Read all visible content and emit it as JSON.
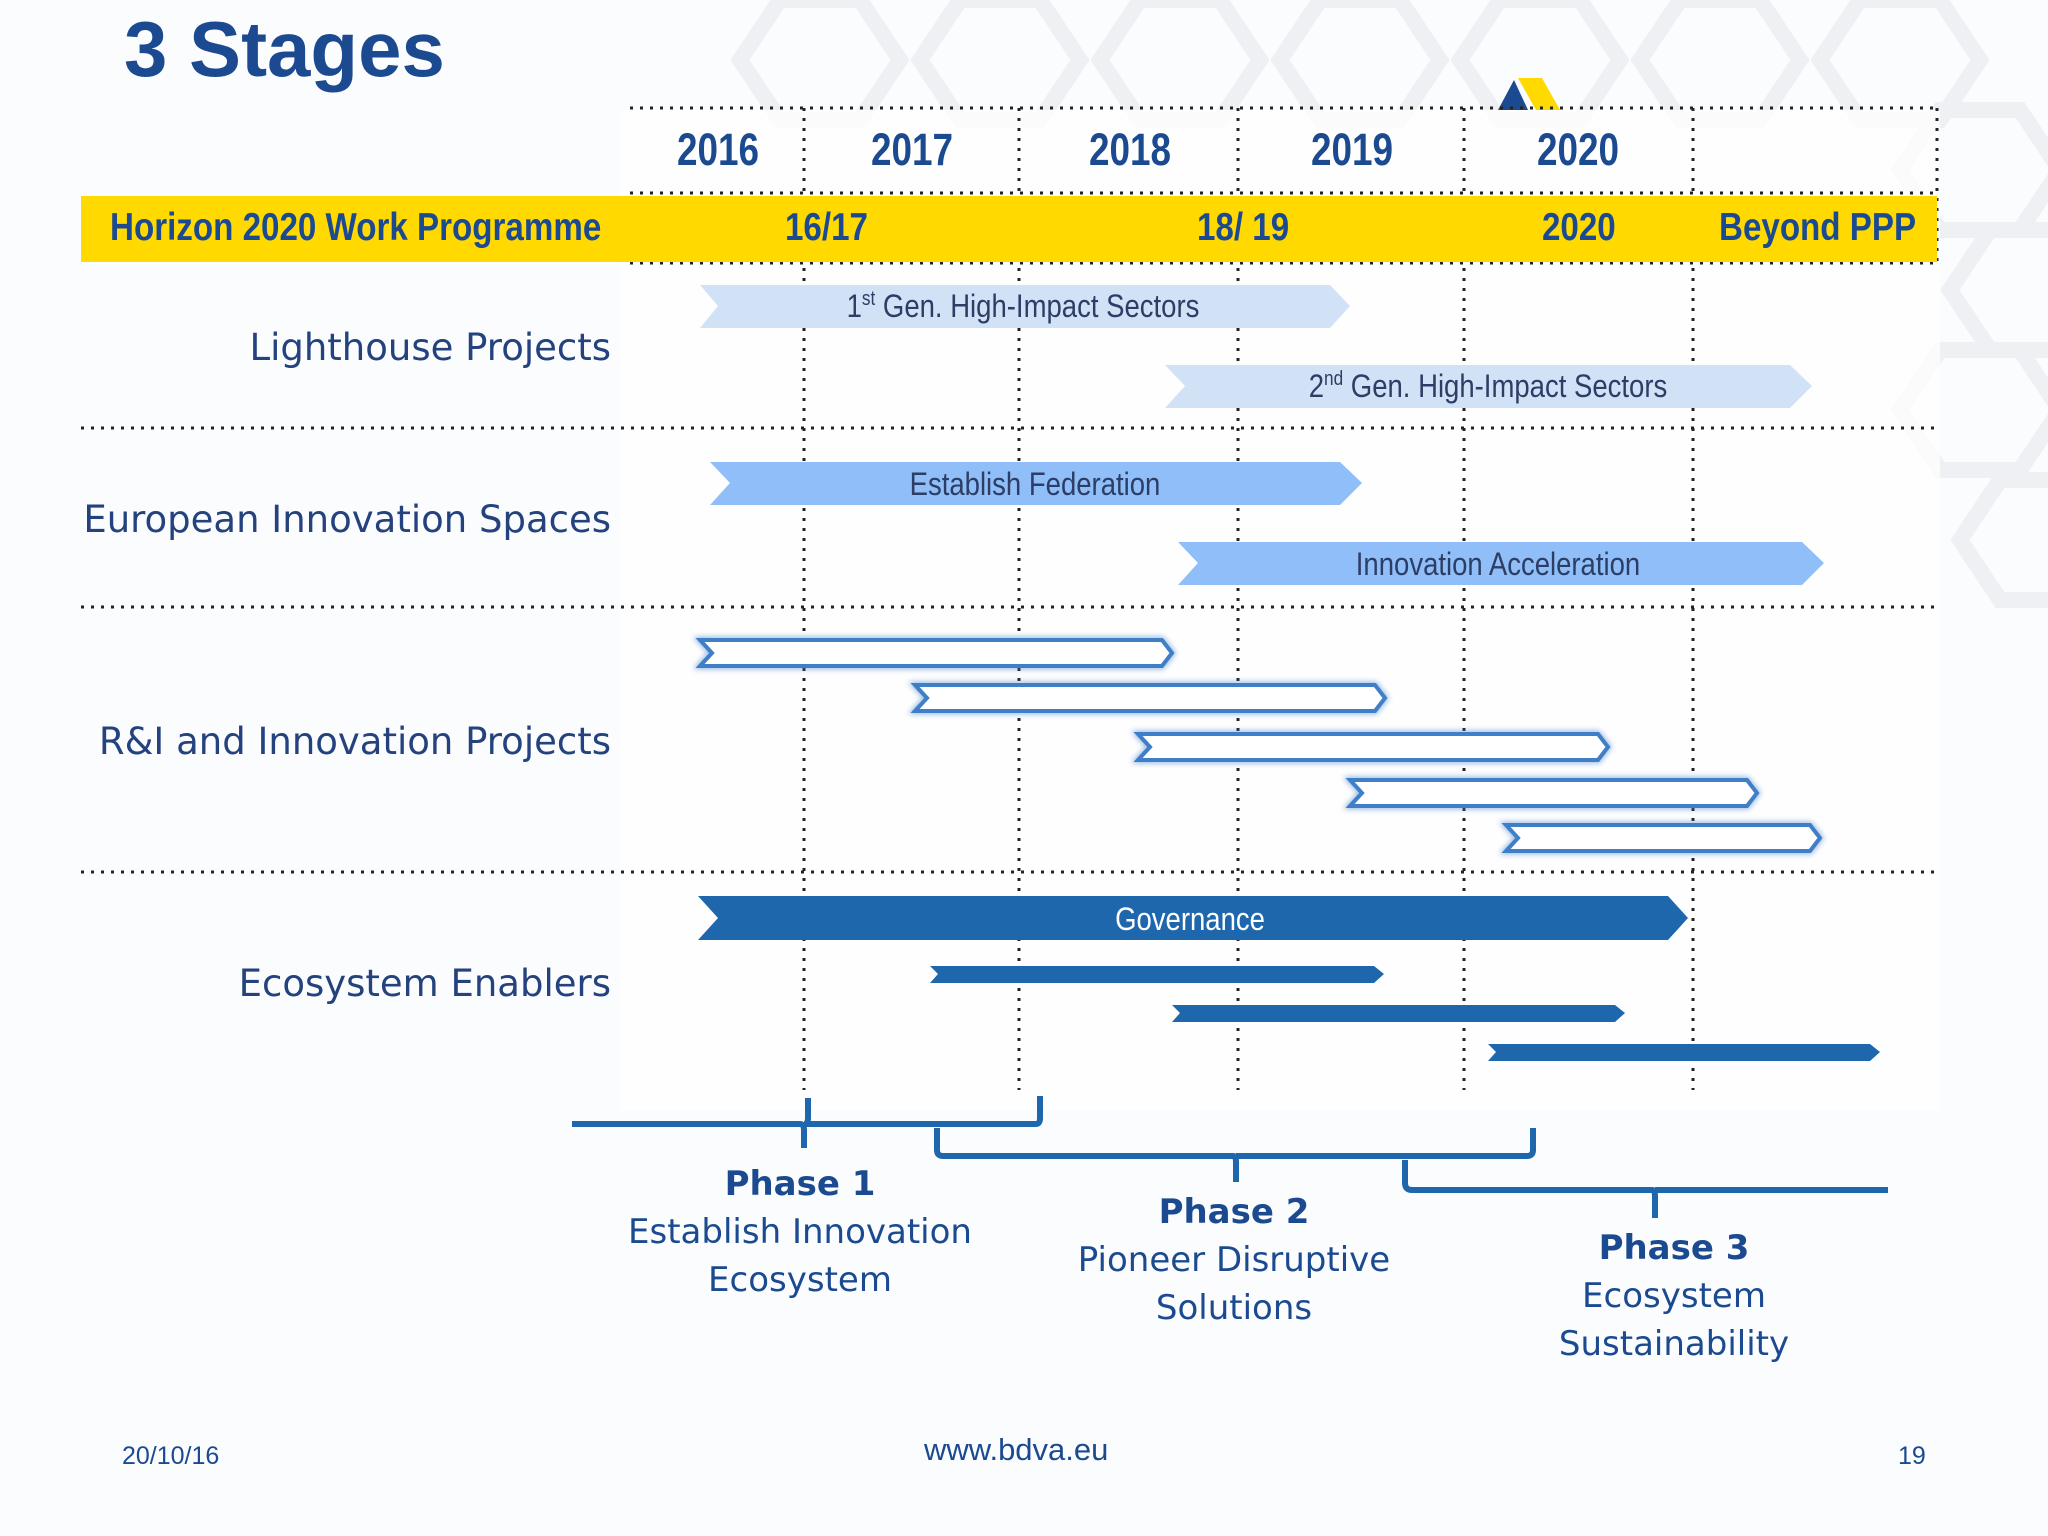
{
  "slide": {
    "title": "3 Stages",
    "date": "20/10/16",
    "url": "www.bdva.eu",
    "page_number": "19"
  },
  "years": [
    "2016",
    "2017",
    "2018",
    "2019",
    "2020"
  ],
  "work_programme": {
    "label": "Horizon 2020  Work Programme",
    "periods": [
      "16/17",
      "18/ 19",
      "2020",
      "Beyond PPP"
    ]
  },
  "rows": [
    {
      "label": "Lighthouse Projects"
    },
    {
      "label": "European Innovation Spaces"
    },
    {
      "label": "R&I and Innovation Projects"
    },
    {
      "label": "Ecosystem Enablers"
    }
  ],
  "bars": {
    "lighthouse_1_gen": "1",
    "lighthouse_1_sup": "st",
    "lighthouse_1_text": " Gen. High-Impact Sectors",
    "lighthouse_2_gen": "2",
    "lighthouse_2_sup": "nd",
    "lighthouse_2_text": " Gen. High-Impact Sectors",
    "eis_1": "Establish Federation",
    "eis_2": "Innovation Acceleration",
    "governance": "Governance"
  },
  "phases": [
    {
      "title": "Phase 1",
      "line1": "Establish Innovation",
      "line2": "Ecosystem"
    },
    {
      "title": "Phase 2",
      "line1": "Pioneer Disruptive",
      "line2": "Solutions"
    },
    {
      "title": "Phase 3",
      "line1": "Ecosystem",
      "line2": "Sustainability"
    }
  ],
  "colors": {
    "navy": "#1b4a90",
    "yellow": "#ffd900",
    "pale_blue": "#d1e2f6",
    "light_blue": "#8fbef8",
    "dark_blue": "#1e67ad"
  }
}
